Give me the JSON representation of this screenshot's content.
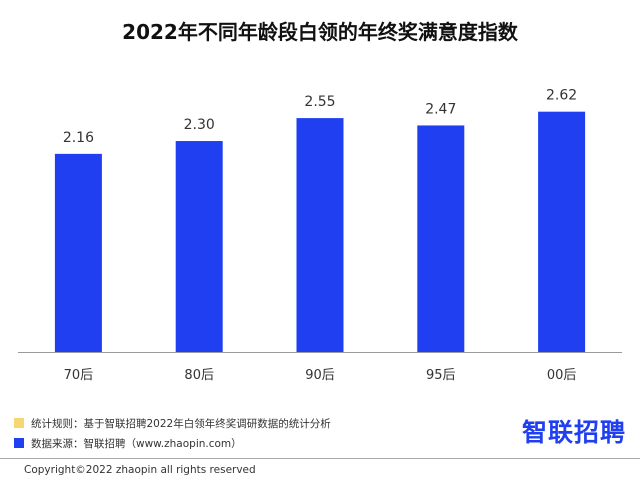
{
  "title": "2022年不同年龄段白领的年终奖满意度指数",
  "chart_data": {
    "type": "bar",
    "title": "2022年不同年龄段白领的年终奖满意度指数",
    "categories": [
      "70后",
      "80后",
      "90后",
      "95后",
      "00后"
    ],
    "values": [
      2.16,
      2.3,
      2.55,
      2.47,
      2.62
    ],
    "data_labels": [
      "2.16",
      "2.30",
      "2.55",
      "2.47",
      "2.62"
    ],
    "xlabel": "",
    "ylabel": "",
    "ylim": [
      0,
      2.9
    ],
    "grid": false,
    "bar_color": "#1f3ff0"
  },
  "notes": {
    "rule_text": "统计规则：基于智联招聘2022年白领年终奖调研数据的统计分析",
    "rule_color": "#f7d774",
    "source_text": "数据来源：智联招聘（www.zhaopin.com）",
    "source_color": "#1f3ff0"
  },
  "brand": "智联招聘",
  "copyright": "Copyright©2022 zhaopin all rights reserved"
}
